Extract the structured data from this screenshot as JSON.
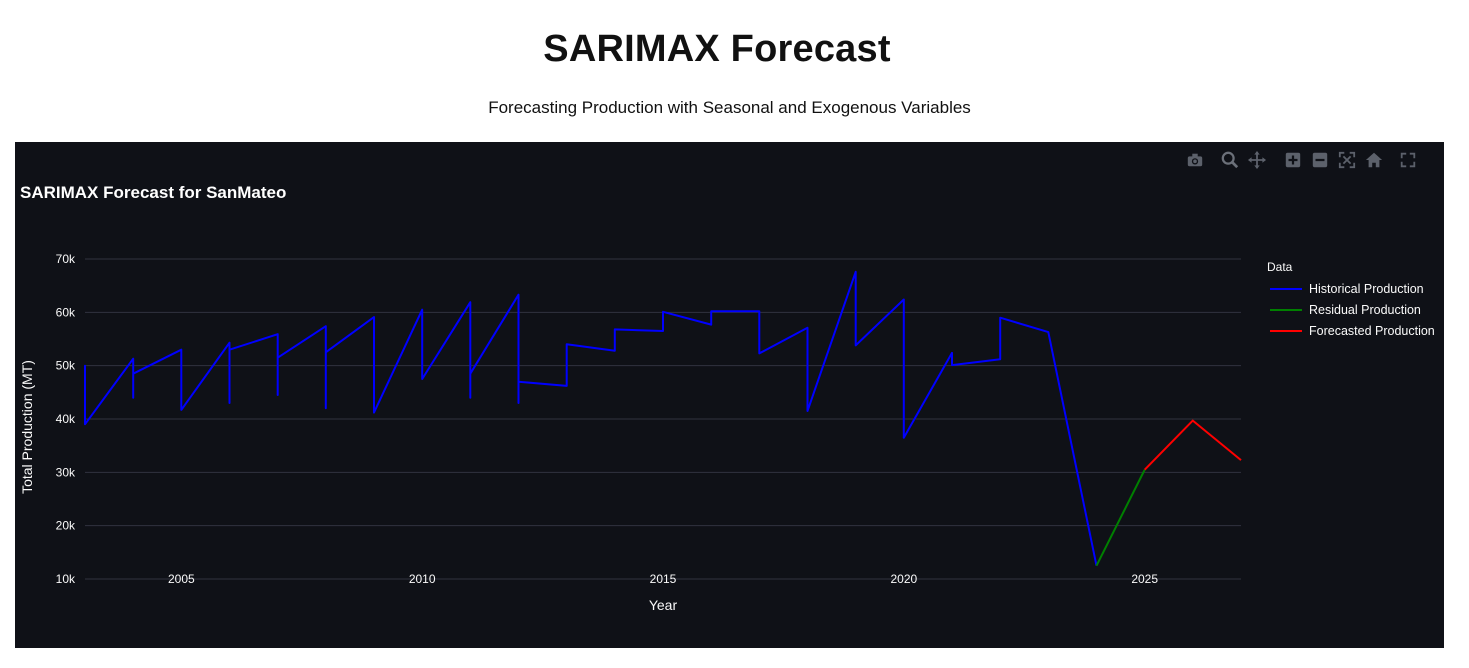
{
  "page": {
    "title": "SARIMAX Forecast",
    "subtitle": "Forecasting Production with Seasonal and Exogenous Variables"
  },
  "modebar": {
    "buttons": [
      "camera-icon",
      "zoom-icon",
      "pan-icon",
      "zoom-in-icon",
      "zoom-out-icon",
      "autoscale-icon",
      "reset-axes-icon",
      "fullscreen-icon"
    ]
  },
  "chart_data": {
    "type": "line",
    "title": "SARIMAX Forecast for SanMateo",
    "xlabel": "Year",
    "ylabel": "Total Production (MT)",
    "xlim": [
      2003,
      2027
    ],
    "ylim": [
      10000,
      70000
    ],
    "x_ticks": [
      2005,
      2010,
      2015,
      2020,
      2025
    ],
    "y_ticks": [
      10000,
      20000,
      30000,
      40000,
      50000,
      60000,
      70000
    ],
    "y_tick_labels": [
      "10k",
      "20k",
      "30k",
      "40k",
      "50k",
      "60k",
      "70k"
    ],
    "grid": true,
    "background": "#0f1117",
    "legend": {
      "title": "Data",
      "placement": "right"
    },
    "series": [
      {
        "name": "Historical Production",
        "color": "#0000ff",
        "x": [
          2003,
          2003,
          2003,
          2004,
          2004,
          2004,
          2004,
          2005,
          2005,
          2005,
          2006,
          2006,
          2006,
          2006,
          2007,
          2007,
          2007,
          2007,
          2008,
          2008,
          2008,
          2008,
          2009,
          2009,
          2010,
          2010,
          2010,
          2011,
          2011,
          2011,
          2011,
          2012,
          2012,
          2012,
          2012,
          2013,
          2013,
          2014,
          2014,
          2015,
          2015,
          2016,
          2016,
          2017,
          2017,
          2018,
          2018,
          2019,
          2019,
          2020,
          2020,
          2021,
          2021,
          2022,
          2022,
          2023,
          2023,
          2024
        ],
        "y": [
          42500,
          50000,
          39000,
          51300,
          44000,
          50200,
          48500,
          53000,
          41700,
          41700,
          54300,
          43000,
          53000,
          53000,
          55900,
          44500,
          51500,
          51500,
          57400,
          42000,
          52500,
          52500,
          59100,
          41200,
          60500,
          47500,
          47500,
          61900,
          44000,
          48500,
          48500,
          63300,
          43000,
          47000,
          47000,
          46200,
          54000,
          52800,
          56800,
          56500,
          60100,
          57700,
          60200,
          60200,
          52300,
          57100,
          41500,
          67600,
          53800,
          62400,
          36500,
          52400,
          50100,
          51200,
          59000,
          56300,
          56300,
          12500
        ]
      },
      {
        "name": "Residual Production",
        "color": "#008000",
        "x": [
          2024,
          2025
        ],
        "y": [
          12500,
          30500
        ]
      },
      {
        "name": "Forecasted Production",
        "color": "#ff0000",
        "x": [
          2025,
          2026,
          2027
        ],
        "y": [
          30500,
          39700,
          32300
        ]
      }
    ]
  }
}
